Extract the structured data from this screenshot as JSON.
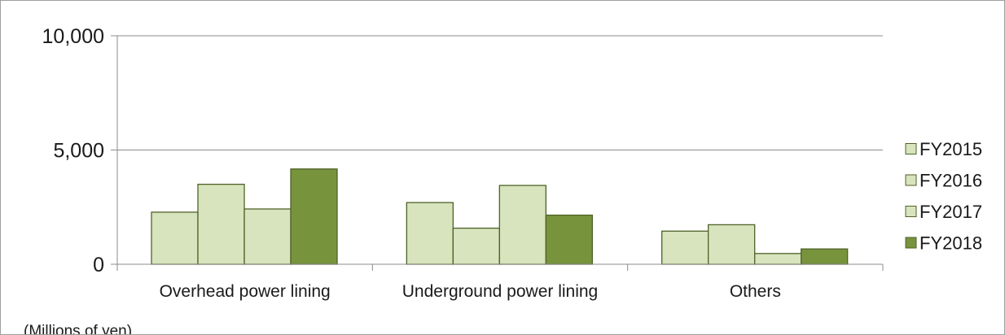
{
  "chart_data": {
    "type": "bar",
    "title": "",
    "xlabel": "",
    "ylabel": "",
    "unit_note": "(Millions of yen)",
    "categories": [
      "Overhead power lining",
      "Underground power lining",
      "Others"
    ],
    "series": [
      {
        "name": "FY2015",
        "values": [
          2280,
          2700,
          1450
        ],
        "color": "#d7e4bd"
      },
      {
        "name": "FY2016",
        "values": [
          3500,
          1580,
          1730
        ],
        "color": "#d7e4bd"
      },
      {
        "name": "FY2017",
        "values": [
          2420,
          3450,
          470
        ],
        "color": "#d7e4bd"
      },
      {
        "name": "FY2018",
        "values": [
          4170,
          2150,
          670
        ],
        "color": "#77933c"
      }
    ],
    "ylim": [
      0,
      10000
    ],
    "yticks": [
      0,
      5000,
      10000
    ],
    "ytick_labels": [
      "0",
      "5,000",
      "10,000"
    ],
    "grid": true,
    "legend_position": "right",
    "bar_border_color": "#4f6228"
  }
}
